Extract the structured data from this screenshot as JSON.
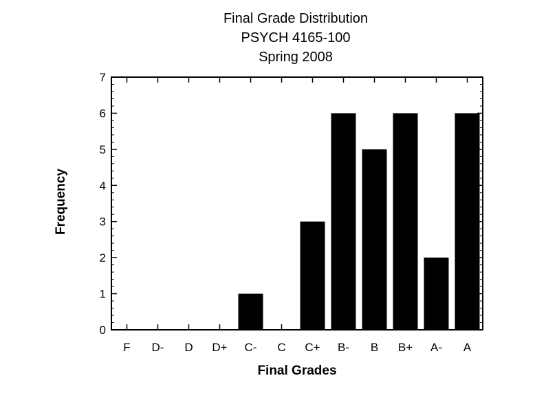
{
  "chart_data": {
    "type": "bar",
    "title_lines": [
      "Final Grade Distribution",
      "PSYCH 4165-100",
      "Spring 2008"
    ],
    "xlabel": "Final Grades",
    "ylabel": "Frequency",
    "categories": [
      "F",
      "D-",
      "D",
      "D+",
      "C-",
      "C",
      "C+",
      "B-",
      "B",
      "B+",
      "A-",
      "A"
    ],
    "values": [
      0,
      0,
      0,
      0,
      1,
      0,
      3,
      6,
      5,
      6,
      2,
      6
    ],
    "ylim": [
      0,
      7
    ],
    "yticks": [
      "0",
      "1",
      "2",
      "3",
      "4",
      "5",
      "6",
      "7"
    ],
    "bar_color": "#000000",
    "grid": false,
    "legend": "none"
  }
}
